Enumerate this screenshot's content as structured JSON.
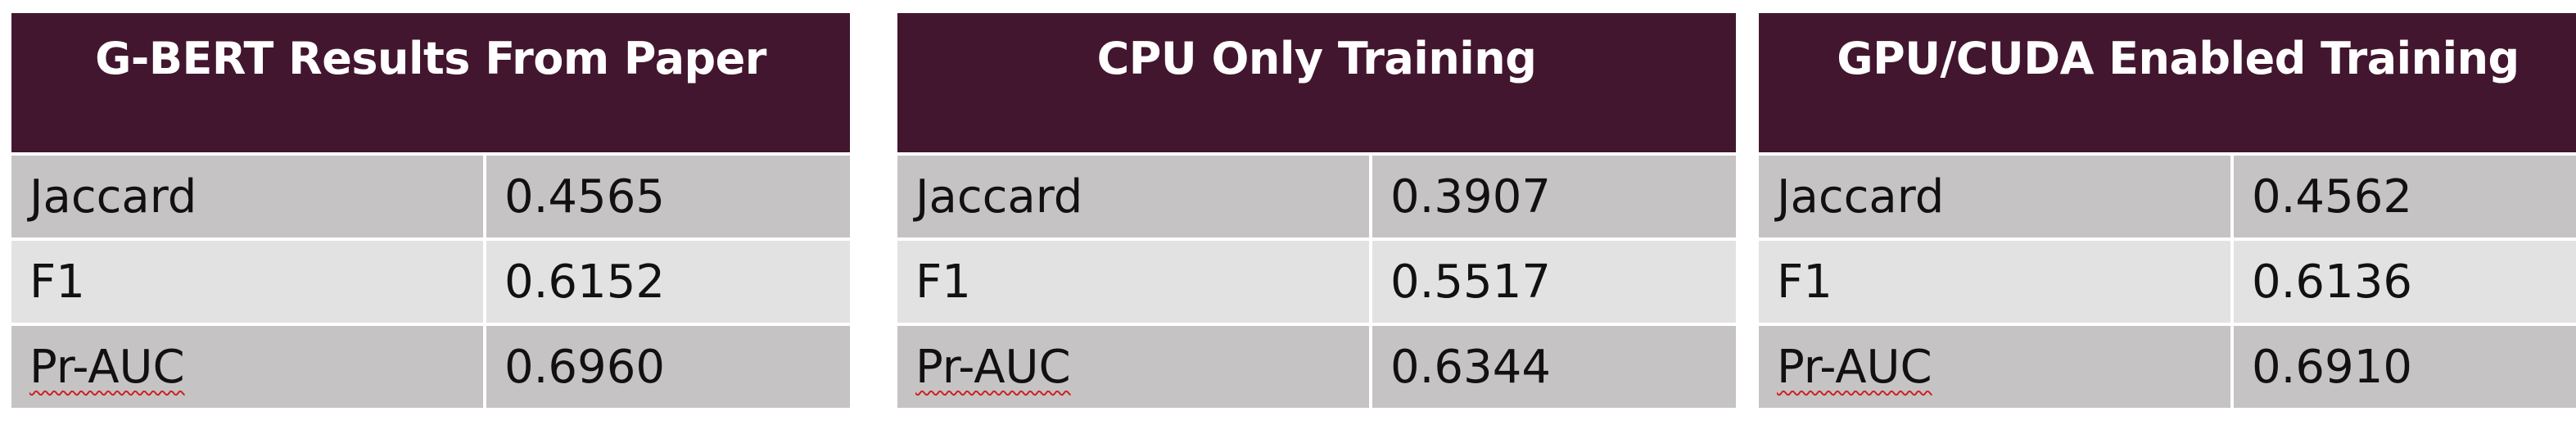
{
  "tables": [
    {
      "header": "G-BERT Results From Paper",
      "rows": [
        {
          "metric": "Jaccard",
          "value": "0.4565"
        },
        {
          "metric": "F1",
          "value": "0.6152"
        },
        {
          "metric": "Pr-AUC",
          "value": "0.6960"
        }
      ]
    },
    {
      "header": "CPU Only Training",
      "rows": [
        {
          "metric": "Jaccard",
          "value": "0.3907"
        },
        {
          "metric": "F1",
          "value": "0.5517"
        },
        {
          "metric": "Pr-AUC",
          "value": "0.6344"
        }
      ]
    },
    {
      "header": "GPU/CUDA Enabled Training",
      "rows": [
        {
          "metric": "Jaccard",
          "value": "0.4562"
        },
        {
          "metric": "F1",
          "value": "0.6136"
        },
        {
          "metric": "Pr-AUC",
          "value": "0.6910"
        }
      ]
    }
  ],
  "colors": {
    "header_bg": "#43162f",
    "header_text": "#ffffff",
    "row_dark": "#c6c3c4",
    "row_light": "#e3e2e3",
    "spellcheck_underline": "#cc2222"
  }
}
